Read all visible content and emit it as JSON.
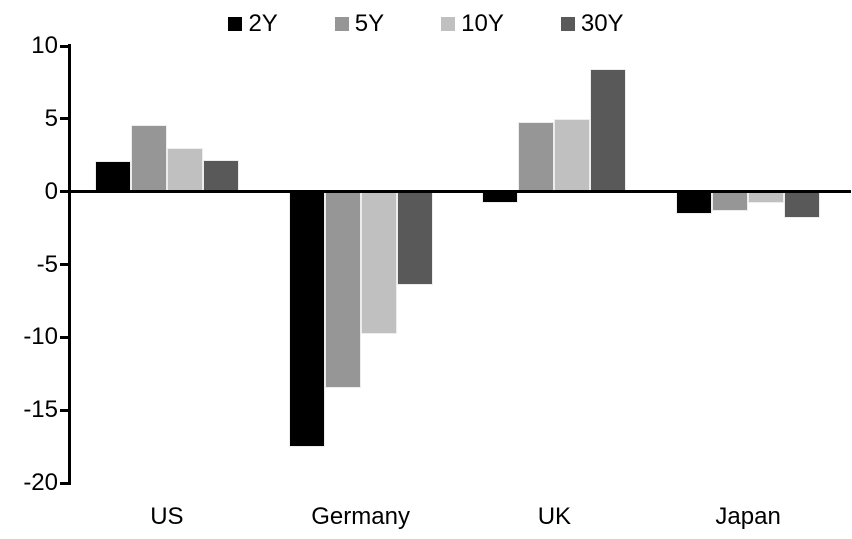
{
  "chart_data": {
    "type": "bar",
    "title": "",
    "categories": [
      "US",
      "Germany",
      "UK",
      "Japan"
    ],
    "series": [
      {
        "name": "2Y",
        "color": "#000000",
        "values": [
          2.1,
          -17.5,
          -0.8,
          -1.5
        ]
      },
      {
        "name": "5Y",
        "color": "#969696",
        "values": [
          4.6,
          -13.5,
          4.8,
          -1.3
        ]
      },
      {
        "name": "10Y",
        "color": "#c0c0c0",
        "values": [
          3.0,
          -9.8,
          5.0,
          -0.8
        ]
      },
      {
        "name": "30Y",
        "color": "#595959",
        "values": [
          2.2,
          -6.4,
          8.4,
          -1.8
        ]
      }
    ],
    "ylim": [
      -20,
      10
    ],
    "yticks": [
      10,
      5,
      0,
      -5,
      -10,
      -15,
      -20
    ],
    "xlabel": "",
    "ylabel": "",
    "legend_position": "top",
    "grid": false,
    "axis_color": "#000000",
    "background_color": "#ffffff"
  }
}
